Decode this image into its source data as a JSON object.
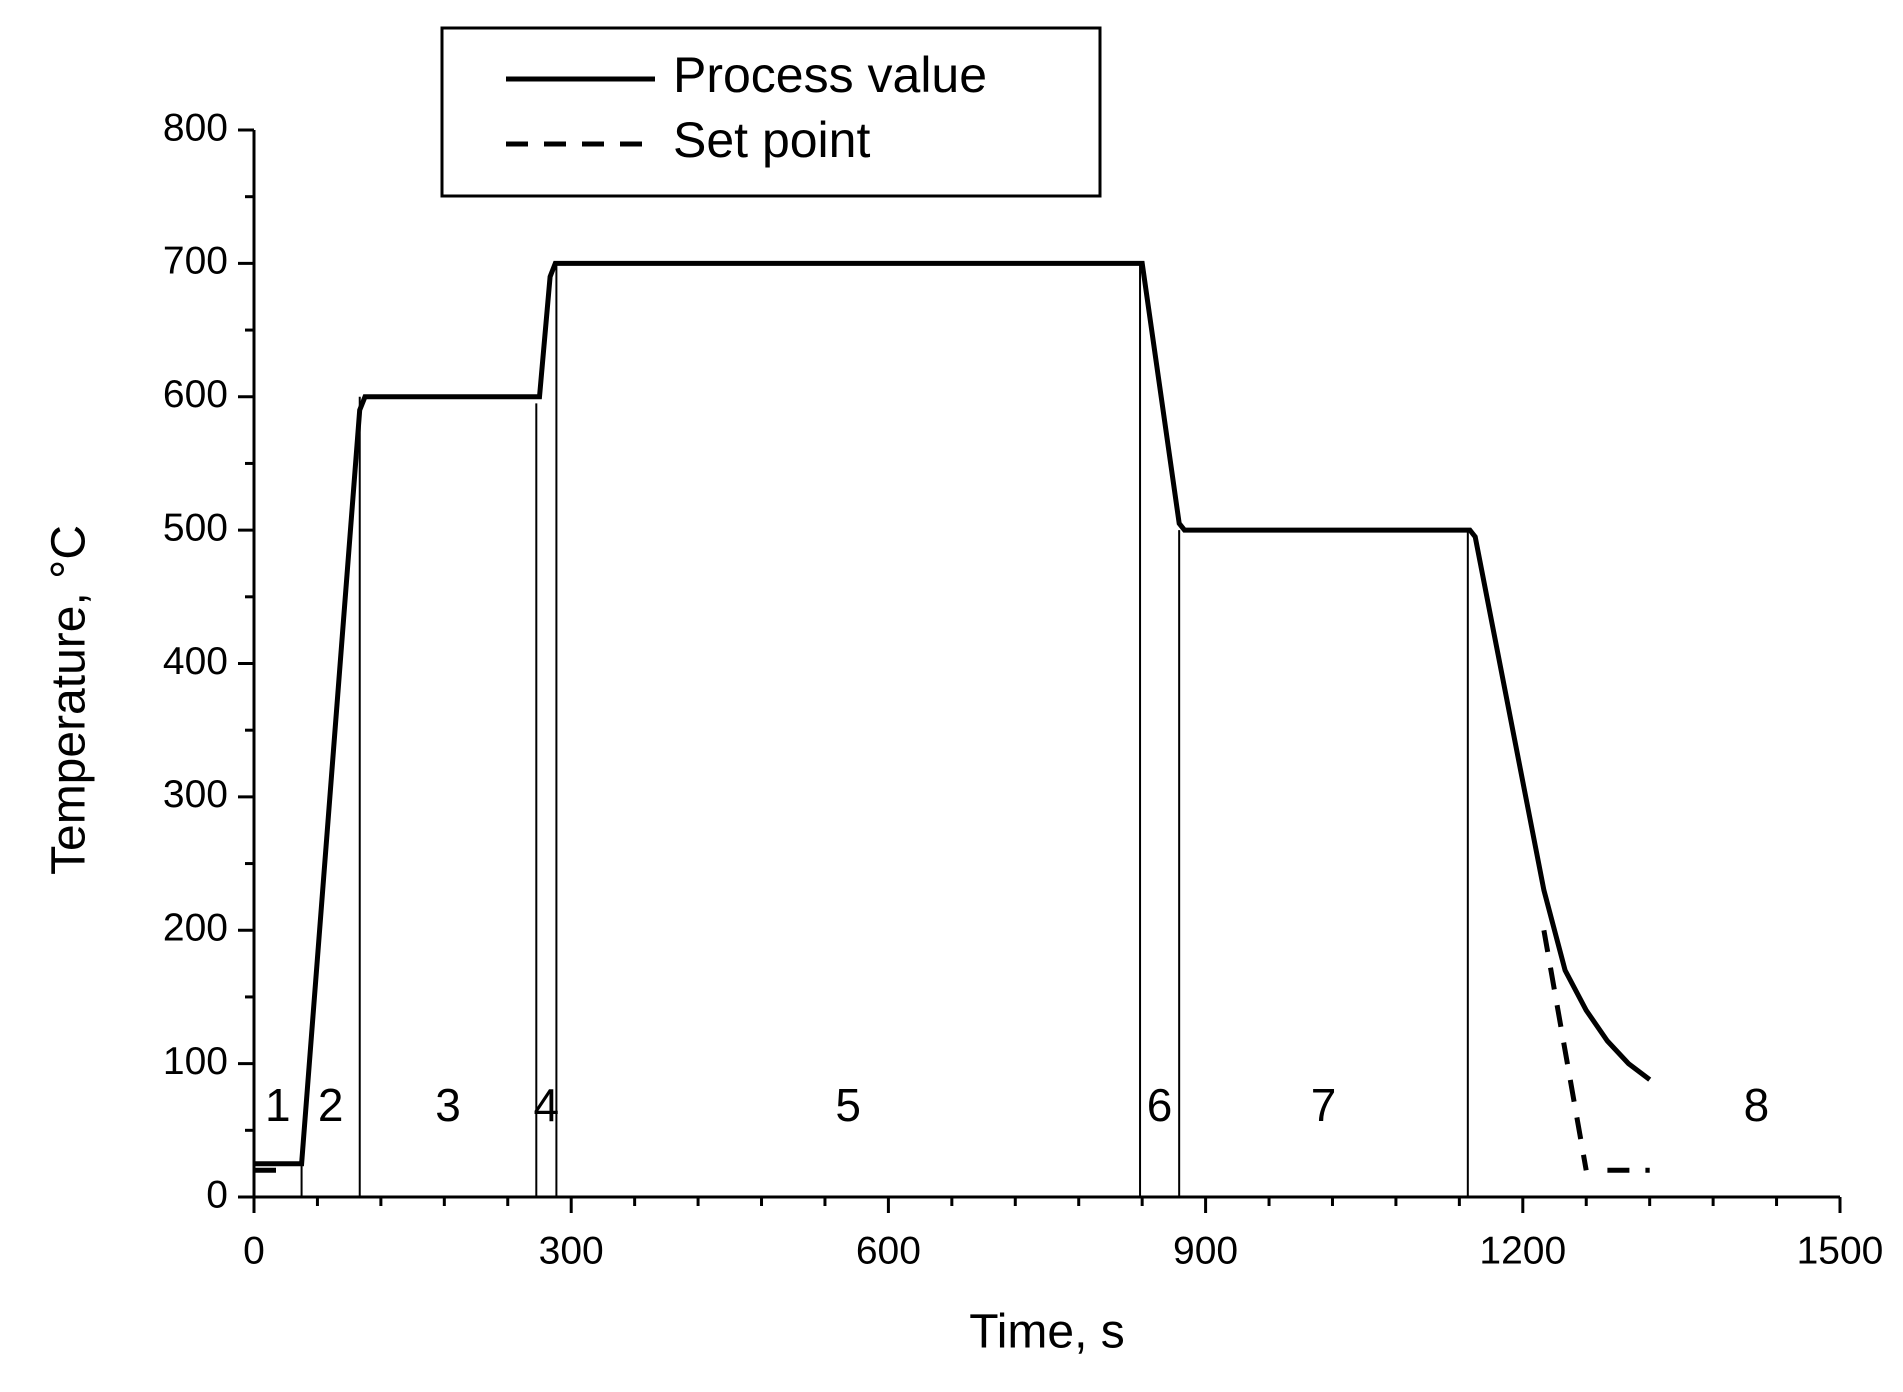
{
  "chart_data": {
    "type": "line",
    "xlabel": "Time, s",
    "ylabel": "Temperature, °C",
    "xlim": [
      0,
      1500
    ],
    "xticks": [
      0,
      300,
      600,
      900,
      1200,
      1500
    ],
    "xminorticks": [
      60,
      120,
      180,
      240,
      360,
      420,
      480,
      540,
      660,
      720,
      780,
      840,
      960,
      1020,
      1080,
      1140,
      1260,
      1320,
      1380,
      1440
    ],
    "ylim": [
      0,
      800
    ],
    "yticks": [
      0,
      100,
      200,
      300,
      400,
      500,
      600,
      700,
      800
    ],
    "yminorticks": [
      50,
      150,
      250,
      350,
      450,
      550,
      650,
      750
    ],
    "legend": "top-left",
    "series": [
      {
        "name": "Process value",
        "color": "#000000",
        "dash": "solid",
        "x": [
          0,
          45,
          100,
          105,
          270,
          280,
          285,
          840,
          875,
          880,
          1150,
          1155,
          1220,
          1240,
          1260,
          1280,
          1300,
          1320
        ],
        "values": [
          25,
          25,
          590,
          600,
          600,
          690,
          700,
          700,
          505,
          500,
          500,
          495,
          230,
          170,
          140,
          117,
          100,
          88
        ]
      },
      {
        "name": "Set point",
        "color": "#000000",
        "dash": "dashed",
        "x": [
          0,
          30,
          null,
          1220,
          1260,
          null,
          1280,
          1320
        ],
        "values": [
          20,
          20,
          null,
          200,
          20,
          null,
          20,
          20
        ]
      }
    ],
    "phase_boundaries": {
      "x": [
        45,
        100,
        267,
        286,
        838,
        875,
        1148
      ],
      "values": [
        25,
        600,
        595,
        700,
        700,
        500,
        500
      ]
    },
    "phase_labels": [
      "1",
      "2",
      "3",
      "4",
      "5",
      "6",
      "7",
      "8"
    ]
  }
}
